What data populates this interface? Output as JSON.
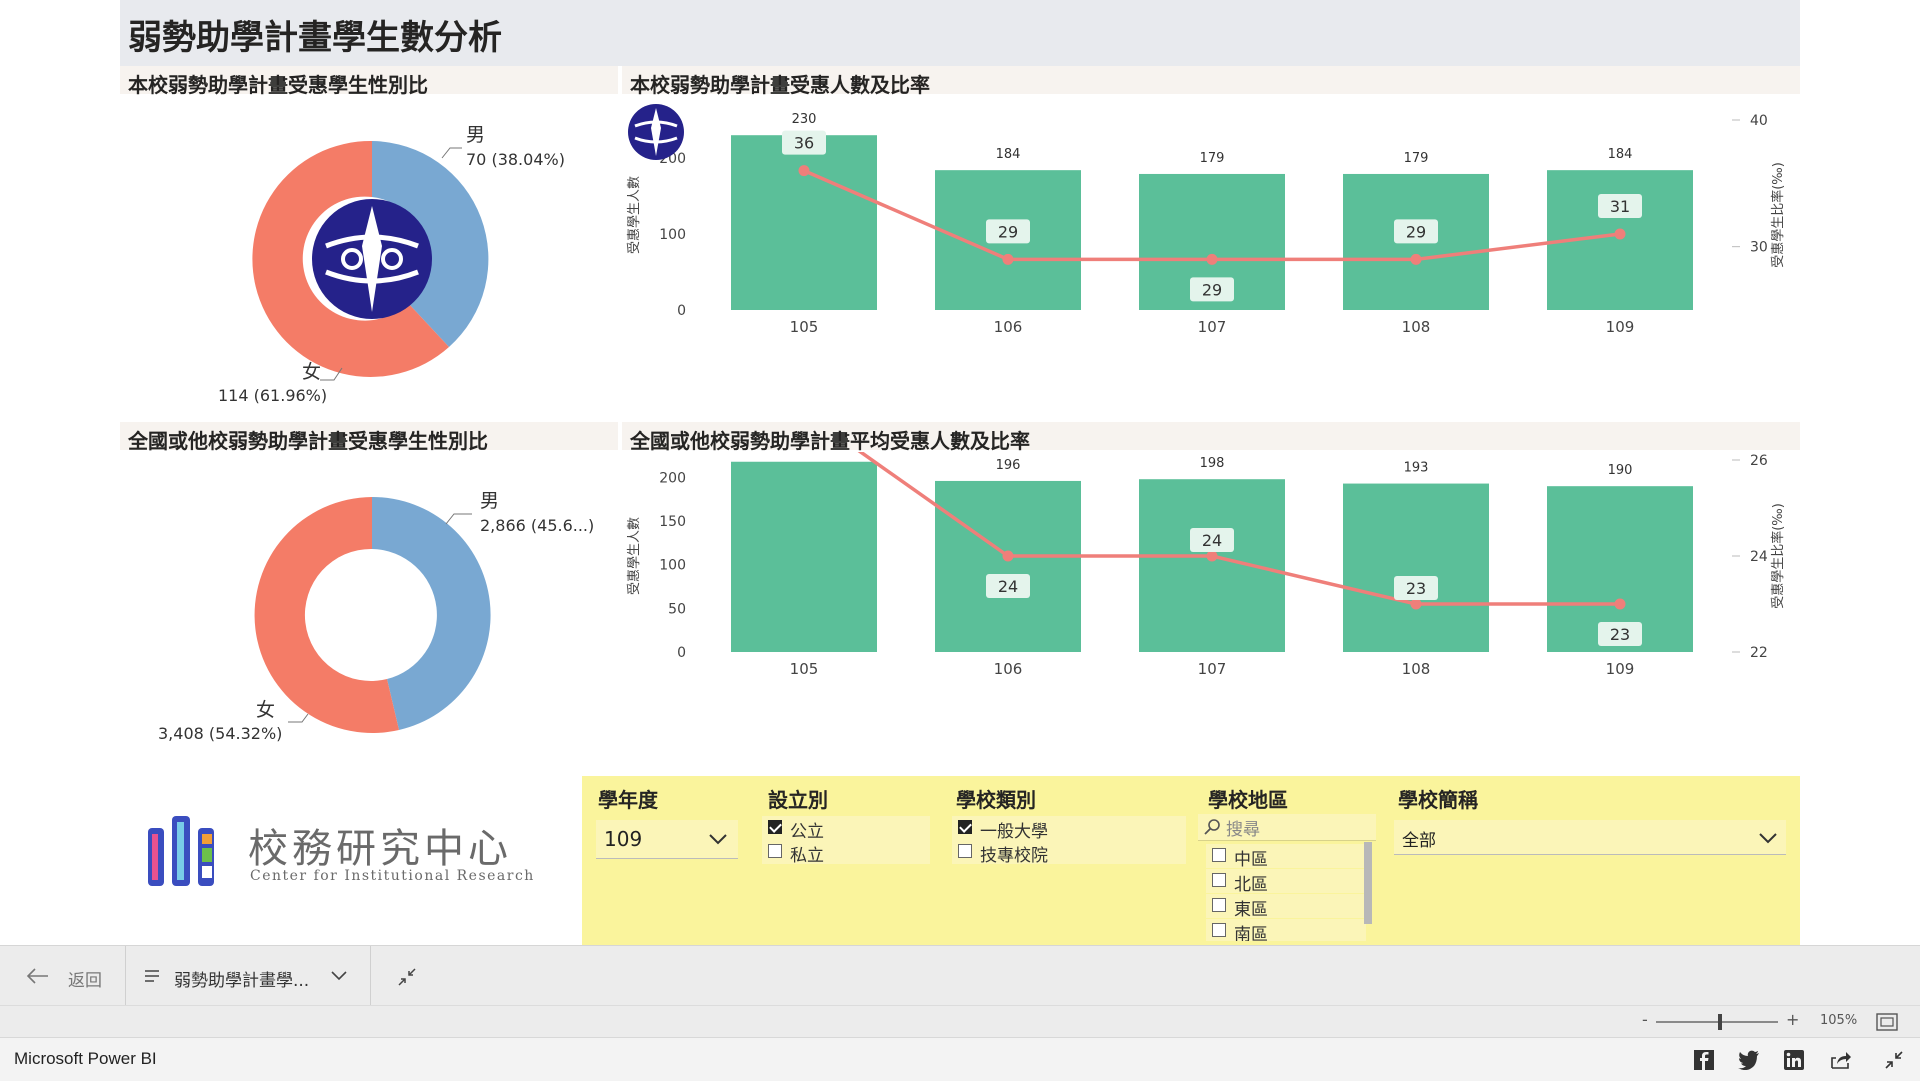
{
  "report": {
    "title": "弱勢助學計畫學生數分析",
    "section1_title": "本校弱勢助學計畫受惠學生性別比",
    "section2_title": "本校弱勢助學計畫受惠人數及比率",
    "section3_title": "全國或他校弱勢助學計畫受惠學生性別比",
    "section4_title": "全國或他校弱勢助學計畫平均受惠人數及比率"
  },
  "donut_school": {
    "male_label": "男",
    "male_value": "70 (38.04%)",
    "female_label": "女",
    "female_value": "114 (61.96%)"
  },
  "donut_national": {
    "male_label": "男",
    "male_value": "2,866 (45.6...)",
    "female_label": "女",
    "female_value": "3,408 (54.32%)"
  },
  "chart_data": [
    {
      "type": "bar",
      "title": "本校弱勢助學計畫受惠人數及比率",
      "categories": [
        "105",
        "106",
        "107",
        "108",
        "109"
      ],
      "series": [
        {
          "values": [
            230,
            184,
            179,
            179,
            184
          ]
        },
        {
          "values": [
            36,
            29,
            29,
            29,
            31
          ]
        }
      ],
      "ylabel": "受惠學生人數",
      "y2label": "受惠學生比率(‰)",
      "ylim": [
        0,
        250
      ],
      "y2lim": [
        25,
        40
      ],
      "yticks": [
        "0",
        "100",
        "200"
      ],
      "y2ticks": [
        "30",
        "40"
      ],
      "bar_color": "#5bbf99",
      "line_color": "#ef7f7a"
    },
    {
      "type": "bar",
      "title": "全國或他校弱勢助學計畫平均受惠人數及比率",
      "categories": [
        "105",
        "106",
        "107",
        "108",
        "109"
      ],
      "series": [
        {
          "values": [
            218,
            196,
            198,
            193,
            190
          ]
        },
        {
          "values": [
            27,
            24,
            24,
            23,
            23
          ]
        }
      ],
      "ylabel": "受惠學生人數",
      "y2label": "受惠學生比率(‰)",
      "ylim": [
        0,
        220
      ],
      "y2lim": [
        22,
        26
      ],
      "yticks": [
        "0",
        "50",
        "100",
        "150",
        "200"
      ],
      "y2ticks": [
        "22",
        "24",
        "26"
      ],
      "bar_color": "#5bbf99",
      "line_color": "#ef7f7a"
    }
  ],
  "logo": {
    "name_cn": "校務研究中心",
    "name_en": "Center for Institutional Research"
  },
  "slicers": {
    "year": {
      "title": "學年度",
      "value": "109"
    },
    "ownership": {
      "title": "設立別",
      "options": [
        {
          "label": "公立",
          "checked": true
        },
        {
          "label": "私立",
          "checked": false
        }
      ]
    },
    "school_type": {
      "title": "學校類別",
      "options": [
        {
          "label": "一般大學",
          "checked": true
        },
        {
          "label": "技專校院",
          "checked": false
        }
      ]
    },
    "region": {
      "title": "學校地區",
      "search_placeholder": "搜尋",
      "options": [
        {
          "label": "中區",
          "checked": false
        },
        {
          "label": "北區",
          "checked": false
        },
        {
          "label": "東區",
          "checked": false
        },
        {
          "label": "南區",
          "checked": false
        }
      ]
    },
    "school_name": {
      "title": "學校簡稱",
      "value": "全部"
    }
  },
  "navbar": {
    "back_label": "返回",
    "page_label": "弱勢助學計畫學..."
  },
  "zoom": {
    "level": "105%",
    "minus": "-",
    "plus": "+"
  },
  "app": {
    "name": "Microsoft Power BI"
  }
}
